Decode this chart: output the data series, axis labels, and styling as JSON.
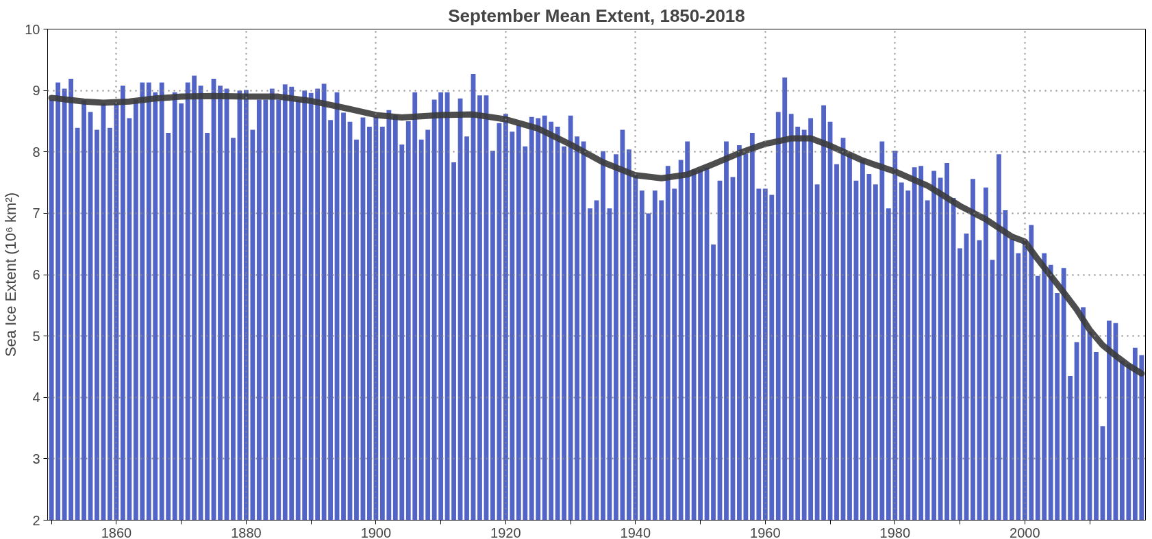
{
  "chart_data": {
    "type": "bar",
    "title": "September Mean Extent, 1850-2018",
    "ylabel": "Sea Ice Extent (10⁶ km²)",
    "x": [
      1850,
      1851,
      1852,
      1853,
      1854,
      1855,
      1856,
      1857,
      1858,
      1859,
      1860,
      1861,
      1862,
      1863,
      1864,
      1865,
      1866,
      1867,
      1868,
      1869,
      1870,
      1871,
      1872,
      1873,
      1874,
      1875,
      1876,
      1877,
      1878,
      1879,
      1880,
      1881,
      1882,
      1883,
      1884,
      1885,
      1886,
      1887,
      1888,
      1889,
      1890,
      1891,
      1892,
      1893,
      1894,
      1895,
      1896,
      1897,
      1898,
      1899,
      1900,
      1901,
      1902,
      1903,
      1904,
      1905,
      1906,
      1907,
      1908,
      1909,
      1910,
      1911,
      1912,
      1913,
      1914,
      1915,
      1916,
      1917,
      1918,
      1919,
      1920,
      1921,
      1922,
      1923,
      1924,
      1925,
      1926,
      1927,
      1928,
      1929,
      1930,
      1931,
      1932,
      1933,
      1934,
      1935,
      1936,
      1937,
      1938,
      1939,
      1940,
      1941,
      1942,
      1943,
      1944,
      1945,
      1946,
      1947,
      1948,
      1949,
      1950,
      1951,
      1952,
      1953,
      1954,
      1955,
      1956,
      1957,
      1958,
      1959,
      1960,
      1961,
      1962,
      1963,
      1964,
      1965,
      1966,
      1967,
      1968,
      1969,
      1970,
      1971,
      1972,
      1973,
      1974,
      1975,
      1976,
      1977,
      1978,
      1979,
      1980,
      1981,
      1982,
      1983,
      1984,
      1985,
      1986,
      1987,
      1988,
      1989,
      1990,
      1991,
      1992,
      1993,
      1994,
      1995,
      1996,
      1997,
      1998,
      1999,
      2000,
      2001,
      2002,
      2003,
      2004,
      2005,
      2006,
      2007,
      2008,
      2009,
      2010,
      2011,
      2012,
      2013,
      2014,
      2015,
      2016,
      2017,
      2018
    ],
    "series": [
      {
        "color": "#4a5cc4",
        "values": [
          8.85,
          9.13,
          9.03,
          9.19,
          8.39,
          8.84,
          8.65,
          8.36,
          8.79,
          8.39,
          8.8,
          9.08,
          8.55,
          8.85,
          9.13,
          9.13,
          8.97,
          9.13,
          8.31,
          8.97,
          8.79,
          9.13,
          9.24,
          9.08,
          8.31,
          9.19,
          9.08,
          9.03,
          8.23,
          9.0,
          9.01,
          8.36,
          8.85,
          8.85,
          9.03,
          8.85,
          9.1,
          9.06,
          8.85,
          9.0,
          8.96,
          9.03,
          9.11,
          8.52,
          8.97,
          8.64,
          8.49,
          8.2,
          8.56,
          8.41,
          8.57,
          8.41,
          8.68,
          8.6,
          8.12,
          8.5,
          8.97,
          8.2,
          8.36,
          8.85,
          8.97,
          8.97,
          7.83,
          8.87,
          8.25,
          9.27,
          8.92,
          8.92,
          8.02,
          8.47,
          8.62,
          8.33,
          8.44,
          8.09,
          8.57,
          8.55,
          8.59,
          8.49,
          8.41,
          8.09,
          8.59,
          8.25,
          8.17,
          7.08,
          7.21,
          8.01,
          7.08,
          7.96,
          8.36,
          8.04,
          7.62,
          7.37,
          7.0,
          7.37,
          7.21,
          7.77,
          7.4,
          7.87,
          8.17,
          7.71,
          7.71,
          7.74,
          6.49,
          7.53,
          8.17,
          7.59,
          8.11,
          7.97,
          8.31,
          7.4,
          7.4,
          7.3,
          8.65,
          9.21,
          8.62,
          8.41,
          8.36,
          8.55,
          7.47,
          8.76,
          8.49,
          7.8,
          8.23,
          7.96,
          7.53,
          7.88,
          7.64,
          7.47,
          8.17,
          7.08,
          8.02,
          7.5,
          7.37,
          7.75,
          7.77,
          7.21,
          7.69,
          7.58,
          7.82,
          7.25,
          6.43,
          6.67,
          7.56,
          6.56,
          7.42,
          6.24,
          7.96,
          7.05,
          6.58,
          6.35,
          6.57,
          6.81,
          5.98,
          6.35,
          6.16,
          5.7,
          6.11,
          4.35,
          4.9,
          5.47,
          5.07,
          4.74,
          3.53,
          5.25,
          5.21,
          4.6,
          4.54,
          4.81,
          4.69
        ]
      },
      {
        "type": "line",
        "color": "#3a3a3a",
        "x": [
          1850,
          1855,
          1858,
          1862,
          1866,
          1870,
          1875,
          1880,
          1885,
          1890,
          1895,
          1900,
          1904,
          1910,
          1915,
          1920,
          1925,
          1930,
          1935,
          1940,
          1944,
          1948,
          1952,
          1956,
          1960,
          1964,
          1967,
          1970,
          1975,
          1980,
          1985,
          1990,
          1994,
          1998,
          2000,
          2002,
          2004,
          2006,
          2008,
          2010,
          2012,
          2014,
          2016,
          2018
        ],
        "values": [
          8.88,
          8.82,
          8.8,
          8.82,
          8.87,
          8.9,
          8.91,
          8.9,
          8.9,
          8.83,
          8.72,
          8.6,
          8.56,
          8.6,
          8.61,
          8.53,
          8.38,
          8.12,
          7.83,
          7.62,
          7.57,
          7.63,
          7.8,
          7.98,
          8.13,
          8.22,
          8.22,
          8.1,
          7.86,
          7.68,
          7.45,
          7.12,
          6.9,
          6.62,
          6.54,
          6.25,
          5.98,
          5.71,
          5.43,
          5.1,
          4.85,
          4.68,
          4.52,
          4.39
        ]
      }
    ],
    "xlim": [
      1849.4,
      2018.6
    ],
    "ylim": [
      2,
      10
    ],
    "xticks": [
      {
        "value": 1850,
        "label": null
      },
      1860,
      {
        "value": 1870,
        "label": null
      },
      1880,
      {
        "value": 1890,
        "label": null
      },
      1900,
      {
        "value": 1910,
        "label": null
      },
      1920,
      {
        "value": 1930,
        "label": null
      },
      1940,
      {
        "value": 1950,
        "label": null
      },
      1960,
      {
        "value": 1970,
        "label": null
      },
      1980,
      {
        "value": 1990,
        "label": null
      },
      2000,
      {
        "value": 2010,
        "label": null
      }
    ],
    "yticks": [
      2,
      3,
      4,
      5,
      6,
      7,
      8,
      9,
      10
    ],
    "grid": true,
    "line_style": "solid",
    "marker": "none"
  }
}
